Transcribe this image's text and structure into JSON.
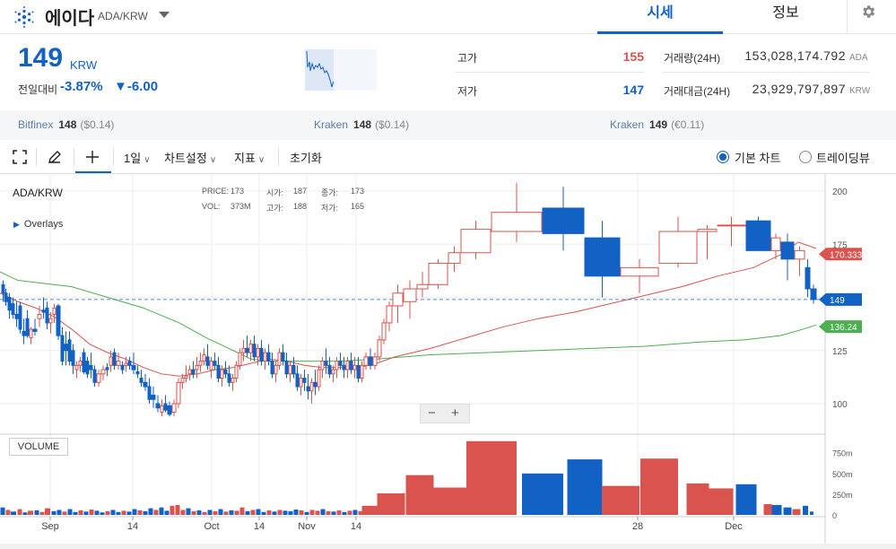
{
  "header": {
    "coin_name": "에이다",
    "coin_symbol": "ADA/KRW",
    "tab_price": "시세",
    "tab_info": "정보"
  },
  "price": {
    "current": "149",
    "unit": "KRW",
    "change_label": "전일대비",
    "change_pct": "-3.87%",
    "change_abs": "▼-6.00"
  },
  "stats": {
    "high_label": "고가",
    "high_value": "155",
    "low_label": "저가",
    "low_value": "147",
    "volume_label": "거래량(24H)",
    "volume_value": "153,028,174.792",
    "volume_unit": "ADA",
    "amount_label": "거래대금(24H)",
    "amount_value": "23,929,797,897",
    "amount_unit": "KRW"
  },
  "exchanges": [
    {
      "name": "Bitfinex",
      "price": "148",
      "diff": "($0.14)"
    },
    {
      "name": "Kraken",
      "price": "148",
      "diff": "($0.14)"
    },
    {
      "name": "Kraken",
      "price": "149",
      "diff": "(€0.11)"
    }
  ],
  "toolbar": {
    "interval": "1일",
    "chart_settings": "차트설정",
    "indicators": "지표",
    "reset": "초기화",
    "basic_chart": "기본 차트",
    "tradingview": "트레이딩뷰"
  },
  "chart_info": {
    "symbol": "ADA/KRW",
    "overlays": "Overlays",
    "price_label": "PRICE:",
    "price_value": "173",
    "open_label": "시가:",
    "open_value": "187",
    "change_label": "종가:",
    "change_value": "173",
    "vol_label": "VOL:",
    "vol_value": "373M",
    "high_label": "고가:",
    "high_value": "188",
    "low_label": "저가:",
    "low_value": "165",
    "volume_panel": "VOLUME",
    "zoom_out": "−",
    "zoom_in": "+"
  },
  "chart_data": {
    "type": "candlestick",
    "y_ticks": [
      "200",
      "175",
      "125",
      "100"
    ],
    "vol_ticks": [
      "750m",
      "500m",
      "250m",
      "0"
    ],
    "x_ticks": [
      "Sep",
      "14",
      "Oct",
      "14",
      "Nov",
      "14",
      "28",
      "Dec"
    ],
    "price_tags": {
      "ma_red": "170.333",
      "current": "149",
      "ma_green": "136.24"
    },
    "colors": {
      "up": "#d9534f",
      "down": "#1261c4",
      "ma_short": "#d9534f",
      "ma_long": "#4caf50"
    },
    "candles": [
      [
        2,
        156,
        158,
        148,
        152
      ],
      [
        5,
        152,
        154,
        146,
        148
      ],
      [
        9,
        150,
        152,
        140,
        144
      ],
      [
        13,
        147,
        150,
        140,
        142
      ],
      [
        17,
        142,
        148,
        136,
        140
      ],
      [
        21,
        146,
        148,
        133,
        135
      ],
      [
        25,
        134,
        140,
        128,
        132
      ],
      [
        29,
        140,
        144,
        131,
        132
      ],
      [
        33,
        131,
        136,
        128,
        135
      ],
      [
        37,
        135,
        140,
        132,
        134
      ],
      [
        42,
        140,
        146,
        136,
        142
      ],
      [
        47,
        144,
        150,
        140,
        143
      ],
      [
        51,
        145,
        148,
        135,
        138
      ],
      [
        55,
        138,
        143,
        133,
        140
      ],
      [
        59,
        142,
        147,
        138,
        145
      ],
      [
        63,
        146,
        147,
        130,
        132
      ],
      [
        68,
        132,
        136,
        118,
        120
      ],
      [
        72,
        128,
        134,
        118,
        125
      ],
      [
        76,
        130,
        134,
        118,
        120
      ],
      [
        80,
        125,
        128,
        114,
        118
      ],
      [
        84,
        116,
        120,
        112,
        118
      ],
      [
        88,
        118,
        122,
        115,
        120
      ],
      [
        92,
        124,
        126,
        114,
        115
      ],
      [
        96,
        120,
        122,
        112,
        114
      ],
      [
        100,
        118,
        124,
        112,
        116
      ],
      [
        104,
        116,
        118,
        108,
        110
      ],
      [
        108,
        110,
        116,
        108,
        114
      ],
      [
        113,
        114,
        118,
        111,
        116
      ],
      [
        118,
        117,
        119,
        113,
        116
      ],
      [
        122,
        118,
        125,
        115,
        122
      ],
      [
        126,
        124,
        126,
        116,
        118
      ],
      [
        130,
        118,
        124,
        116,
        120
      ],
      [
        135,
        118,
        120,
        114,
        116
      ],
      [
        139,
        118,
        122,
        115,
        119
      ],
      [
        143,
        120,
        122,
        116,
        118
      ],
      [
        147,
        118,
        124,
        114,
        116
      ],
      [
        152,
        115,
        118,
        112,
        114
      ],
      [
        156,
        112,
        116,
        108,
        110
      ],
      [
        160,
        110,
        114,
        106,
        108
      ],
      [
        165,
        108,
        112,
        100,
        102
      ],
      [
        169,
        104,
        108,
        98,
        102
      ],
      [
        174,
        100,
        104,
        96,
        98
      ],
      [
        179,
        96,
        102,
        94,
        99
      ],
      [
        183,
        100,
        104,
        96,
        97
      ],
      [
        187,
        99,
        101,
        94,
        95
      ],
      [
        192,
        96,
        102,
        94,
        100
      ],
      [
        197,
        100,
        112,
        98,
        110
      ],
      [
        202,
        110,
        114,
        107,
        112
      ],
      [
        206,
        112,
        118,
        110,
        113
      ],
      [
        210,
        114,
        118,
        111,
        116
      ],
      [
        214,
        116,
        120,
        112,
        114
      ],
      [
        218,
        116,
        122,
        112,
        118
      ],
      [
        222,
        118,
        124,
        115,
        120
      ],
      [
        226,
        120,
        126,
        118,
        123
      ],
      [
        230,
        122,
        128,
        116,
        118
      ],
      [
        234,
        116,
        122,
        112,
        120
      ],
      [
        238,
        120,
        124,
        116,
        118
      ],
      [
        242,
        118,
        122,
        110,
        112
      ],
      [
        246,
        112,
        118,
        108,
        116
      ],
      [
        250,
        116,
        120,
        112,
        114
      ],
      [
        254,
        114,
        118,
        108,
        110
      ],
      [
        258,
        110,
        114,
        106,
        112
      ],
      [
        262,
        112,
        120,
        110,
        118
      ],
      [
        266,
        118,
        126,
        116,
        124
      ],
      [
        270,
        124,
        130,
        120,
        126
      ],
      [
        274,
        126,
        132,
        122,
        124
      ],
      [
        278,
        124,
        130,
        120,
        128
      ],
      [
        282,
        128,
        132,
        120,
        122
      ],
      [
        286,
        122,
        128,
        118,
        126
      ],
      [
        290,
        126,
        130,
        118,
        120
      ],
      [
        294,
        120,
        126,
        116,
        124
      ],
      [
        298,
        124,
        128,
        118,
        120
      ],
      [
        302,
        120,
        124,
        112,
        114
      ],
      [
        306,
        114,
        120,
        110,
        118
      ],
      [
        310,
        118,
        126,
        116,
        124
      ],
      [
        314,
        124,
        128,
        118,
        120
      ],
      [
        318,
        120,
        124,
        112,
        114
      ],
      [
        322,
        114,
        120,
        110,
        118
      ],
      [
        326,
        118,
        122,
        112,
        114
      ],
      [
        330,
        114,
        118,
        106,
        108
      ],
      [
        334,
        108,
        114,
        104,
        112
      ],
      [
        338,
        112,
        116,
        106,
        110
      ],
      [
        342,
        108,
        114,
        102,
        106
      ],
      [
        346,
        106,
        112,
        100,
        110
      ],
      [
        350,
        110,
        116,
        104,
        108
      ],
      [
        354,
        108,
        118,
        106,
        116
      ],
      [
        358,
        116,
        122,
        112,
        120
      ],
      [
        362,
        120,
        126,
        114,
        118
      ],
      [
        366,
        118,
        122,
        112,
        114
      ],
      [
        370,
        114,
        118,
        110,
        116
      ],
      [
        374,
        116,
        122,
        112,
        120
      ],
      [
        378,
        120,
        124,
        116,
        118
      ],
      [
        382,
        118,
        122,
        112,
        116
      ],
      [
        386,
        116,
        122,
        112,
        120
      ],
      [
        390,
        120,
        124,
        114,
        116
      ],
      [
        394,
        116,
        122,
        112,
        118
      ],
      [
        398,
        118,
        122,
        110,
        112
      ],
      [
        402,
        112,
        120,
        110,
        118
      ],
      [
        406,
        118,
        124,
        116,
        122
      ],
      [
        411,
        122,
        126,
        116,
        118
      ],
      [
        416,
        118,
        124,
        116,
        122
      ],
      [
        421,
        122,
        132,
        120,
        130
      ],
      [
        426,
        130,
        140,
        128,
        138
      ],
      [
        431,
        138,
        148,
        134,
        146
      ],
      [
        438,
        146,
        156,
        138,
        152
      ],
      [
        450,
        148,
        158,
        140,
        154
      ],
      [
        465,
        154,
        162,
        150,
        156
      ],
      [
        478,
        156,
        168,
        154,
        166
      ],
      [
        500,
        166,
        174,
        162,
        171
      ],
      [
        514,
        171,
        186,
        168,
        182
      ],
      [
        548,
        181,
        204,
        176,
        190
      ],
      [
        605,
        192,
        202,
        172,
        180
      ],
      [
        652,
        178,
        186,
        150,
        160
      ],
      [
        692,
        160,
        168,
        152,
        164
      ],
      [
        735,
        166,
        188,
        164,
        181
      ],
      [
        778,
        181,
        184,
        168,
        182
      ],
      [
        800,
        184,
        188,
        174,
        184
      ],
      [
        832,
        186,
        188,
        172,
        172
      ],
      [
        860,
        172,
        180,
        168,
        178
      ],
      [
        871,
        176,
        180,
        158,
        168
      ],
      [
        886,
        168,
        174,
        160,
        172
      ],
      [
        898,
        164,
        168,
        150,
        154
      ],
      [
        904,
        154,
        156,
        147,
        149
      ]
    ],
    "volumes": [
      [
        3,
        90,
        "down"
      ],
      [
        9,
        60,
        "up"
      ],
      [
        15,
        40,
        "down"
      ],
      [
        22,
        70,
        "up"
      ],
      [
        28,
        30,
        "down"
      ],
      [
        34,
        50,
        "up"
      ],
      [
        41,
        55,
        "down"
      ],
      [
        47,
        35,
        "up"
      ],
      [
        53,
        80,
        "up"
      ],
      [
        60,
        45,
        "down"
      ],
      [
        66,
        60,
        "down"
      ],
      [
        72,
        40,
        "up"
      ],
      [
        78,
        70,
        "down"
      ],
      [
        84,
        35,
        "down"
      ],
      [
        90,
        55,
        "up"
      ],
      [
        96,
        40,
        "down"
      ],
      [
        102,
        65,
        "up"
      ],
      [
        108,
        50,
        "down"
      ],
      [
        114,
        30,
        "down"
      ],
      [
        120,
        45,
        "up"
      ],
      [
        126,
        60,
        "down"
      ],
      [
        132,
        35,
        "down"
      ],
      [
        138,
        50,
        "up"
      ],
      [
        144,
        40,
        "down"
      ],
      [
        150,
        70,
        "down"
      ],
      [
        156,
        55,
        "up"
      ],
      [
        162,
        45,
        "down"
      ],
      [
        168,
        80,
        "down"
      ],
      [
        174,
        60,
        "up"
      ],
      [
        180,
        90,
        "down"
      ],
      [
        186,
        50,
        "down"
      ],
      [
        192,
        110,
        "up"
      ],
      [
        198,
        120,
        "up"
      ],
      [
        204,
        60,
        "up"
      ],
      [
        210,
        80,
        "down"
      ],
      [
        216,
        45,
        "up"
      ],
      [
        222,
        55,
        "down"
      ],
      [
        228,
        35,
        "up"
      ],
      [
        234,
        60,
        "down"
      ],
      [
        240,
        45,
        "up"
      ],
      [
        246,
        70,
        "down"
      ],
      [
        252,
        40,
        "up"
      ],
      [
        258,
        55,
        "down"
      ],
      [
        264,
        50,
        "up"
      ],
      [
        270,
        90,
        "up"
      ],
      [
        276,
        45,
        "down"
      ],
      [
        282,
        60,
        "up"
      ],
      [
        288,
        70,
        "down"
      ],
      [
        294,
        35,
        "down"
      ],
      [
        300,
        55,
        "up"
      ],
      [
        306,
        40,
        "down"
      ],
      [
        312,
        60,
        "up"
      ],
      [
        318,
        50,
        "down"
      ],
      [
        324,
        45,
        "down"
      ],
      [
        330,
        65,
        "down"
      ],
      [
        336,
        55,
        "up"
      ],
      [
        342,
        35,
        "down"
      ],
      [
        348,
        60,
        "up"
      ],
      [
        354,
        50,
        "up"
      ],
      [
        360,
        70,
        "down"
      ],
      [
        366,
        45,
        "up"
      ],
      [
        372,
        40,
        "down"
      ],
      [
        378,
        55,
        "up"
      ],
      [
        384,
        35,
        "down"
      ],
      [
        390,
        50,
        "up"
      ],
      [
        396,
        60,
        "down"
      ],
      [
        402,
        45,
        "up"
      ],
      [
        408,
        75,
        "up"
      ],
      [
        414,
        110,
        "up"
      ],
      [
        436,
        260,
        "up"
      ],
      [
        468,
        480,
        "up"
      ],
      [
        500,
        330,
        "up"
      ],
      [
        548,
        890,
        "up"
      ],
      [
        605,
        500,
        "down"
      ],
      [
        652,
        670,
        "down"
      ],
      [
        692,
        350,
        "up"
      ],
      [
        735,
        680,
        "up"
      ],
      [
        778,
        380,
        "up"
      ],
      [
        804,
        320,
        "up"
      ],
      [
        832,
        370,
        "down"
      ],
      [
        856,
        130,
        "up"
      ],
      [
        866,
        120,
        "down"
      ],
      [
        878,
        90,
        "down"
      ],
      [
        888,
        70,
        "up"
      ],
      [
        898,
        110,
        "down"
      ],
      [
        905,
        40,
        "down"
      ]
    ],
    "ma_short": [
      [
        0,
        152
      ],
      [
        20,
        148
      ],
      [
        40,
        145
      ],
      [
        60,
        141
      ],
      [
        80,
        135
      ],
      [
        100,
        128
      ],
      [
        120,
        124
      ],
      [
        140,
        121
      ],
      [
        160,
        117
      ],
      [
        180,
        114
      ],
      [
        200,
        113
      ],
      [
        220,
        114
      ],
      [
        240,
        116
      ],
      [
        260,
        117
      ],
      [
        280,
        119
      ],
      [
        300,
        121
      ],
      [
        320,
        120
      ],
      [
        340,
        118
      ],
      [
        360,
        117
      ],
      [
        380,
        117
      ],
      [
        400,
        117
      ],
      [
        420,
        119
      ],
      [
        440,
        122
      ],
      [
        480,
        126
      ],
      [
        520,
        131
      ],
      [
        560,
        136
      ],
      [
        600,
        140
      ],
      [
        640,
        143
      ],
      [
        680,
        147
      ],
      [
        720,
        151
      ],
      [
        760,
        155
      ],
      [
        800,
        160
      ],
      [
        840,
        164
      ],
      [
        870,
        170
      ],
      [
        890,
        176
      ],
      [
        910,
        173
      ]
    ],
    "ma_long": [
      [
        0,
        162
      ],
      [
        20,
        158
      ],
      [
        40,
        157
      ],
      [
        80,
        155
      ],
      [
        120,
        150
      ],
      [
        160,
        145
      ],
      [
        200,
        138
      ],
      [
        230,
        131
      ],
      [
        260,
        125
      ],
      [
        280,
        121
      ],
      [
        300,
        120
      ],
      [
        340,
        120
      ],
      [
        380,
        120
      ],
      [
        420,
        121
      ],
      [
        480,
        123
      ],
      [
        540,
        124
      ],
      [
        600,
        125
      ],
      [
        660,
        126
      ],
      [
        720,
        127
      ],
      [
        780,
        129
      ],
      [
        830,
        130
      ],
      [
        870,
        132
      ],
      [
        895,
        135
      ],
      [
        910,
        137
      ]
    ]
  }
}
